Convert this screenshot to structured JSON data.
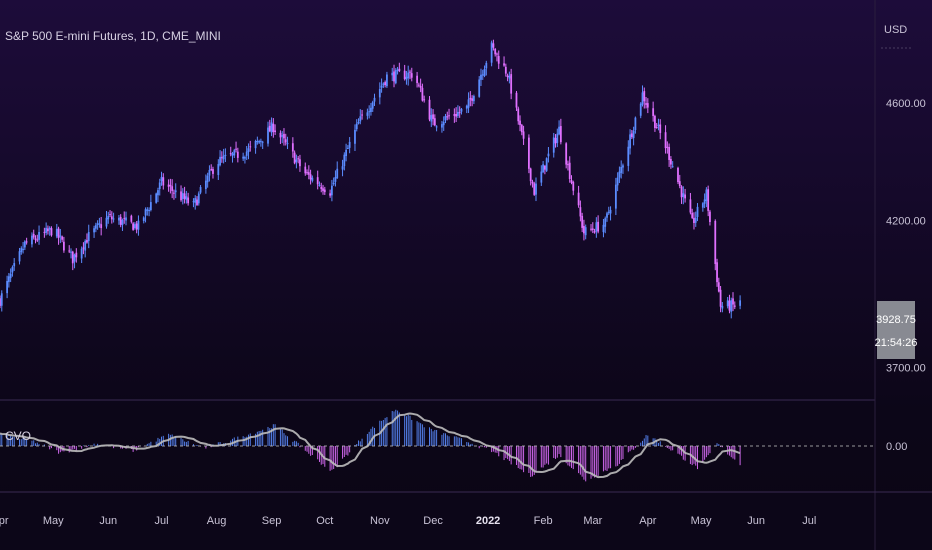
{
  "title": "S&P 500 E-mini Futures, 1D, CME_MINI",
  "currency": "USD",
  "indicator_label": "CVO",
  "price_tag": {
    "price": "3928.75",
    "countdown": "21:54:26"
  },
  "colors": {
    "background": "#0c0618",
    "bull": "#5b8cff",
    "bear": "#e070ff",
    "signal": "#bdbdbd"
  },
  "chart_data": [
    {
      "type": "candlestick",
      "title": "S&P 500 E-mini Futures, 1D, CME_MINI",
      "ylabel": "USD",
      "ylim": [
        3590,
        4950
      ],
      "yticks": [
        {
          "value": 4600,
          "label": "4600.00"
        },
        {
          "value": 4200,
          "label": "4200.00"
        },
        {
          "value": 3700,
          "label": "3700.00"
        }
      ],
      "xlim": [
        "2021-04-01",
        "2022-08-07"
      ],
      "xticks": [
        {
          "date": "2021-04-01",
          "label": "Apr"
        },
        {
          "date": "2021-05-01",
          "label": "May"
        },
        {
          "date": "2021-06-01",
          "label": "Jun"
        },
        {
          "date": "2021-07-01",
          "label": "Jul"
        },
        {
          "date": "2021-08-01",
          "label": "Aug"
        },
        {
          "date": "2021-09-01",
          "label": "Sep"
        },
        {
          "date": "2021-10-01",
          "label": "Oct"
        },
        {
          "date": "2021-11-01",
          "label": "Nov"
        },
        {
          "date": "2021-12-01",
          "label": "Dec"
        },
        {
          "date": "2022-01-01",
          "label": "2022",
          "bold": true
        },
        {
          "date": "2022-02-01",
          "label": "Feb"
        },
        {
          "date": "2022-03-01",
          "label": "Mar"
        },
        {
          "date": "2022-04-01",
          "label": "Apr"
        },
        {
          "date": "2022-05-01",
          "label": "May"
        },
        {
          "date": "2022-06-01",
          "label": "Jun"
        },
        {
          "date": "2022-07-01",
          "label": "Jul"
        }
      ],
      "close_path": [
        {
          "date": "2021-04-01",
          "close": 3930
        },
        {
          "date": "2021-04-15",
          "close": 4120
        },
        {
          "date": "2021-05-01",
          "close": 4170
        },
        {
          "date": "2021-05-12",
          "close": 4070
        },
        {
          "date": "2021-05-20",
          "close": 4140
        },
        {
          "date": "2021-06-01",
          "close": 4210
        },
        {
          "date": "2021-06-18",
          "close": 4180
        },
        {
          "date": "2021-07-01",
          "close": 4330
        },
        {
          "date": "2021-07-19",
          "close": 4250
        },
        {
          "date": "2021-08-01",
          "close": 4400
        },
        {
          "date": "2021-08-20",
          "close": 4440
        },
        {
          "date": "2021-09-02",
          "close": 4520
        },
        {
          "date": "2021-09-20",
          "close": 4360
        },
        {
          "date": "2021-10-04",
          "close": 4300
        },
        {
          "date": "2021-10-20",
          "close": 4530
        },
        {
          "date": "2021-11-05",
          "close": 4690
        },
        {
          "date": "2021-11-20",
          "close": 4700
        },
        {
          "date": "2021-12-01",
          "close": 4530
        },
        {
          "date": "2021-12-20",
          "close": 4580
        },
        {
          "date": "2022-01-03",
          "close": 4790
        },
        {
          "date": "2022-01-12",
          "close": 4700
        },
        {
          "date": "2022-01-27",
          "close": 4300
        },
        {
          "date": "2022-02-10",
          "close": 4510
        },
        {
          "date": "2022-02-24",
          "close": 4160
        },
        {
          "date": "2022-03-08",
          "close": 4190
        },
        {
          "date": "2022-03-29",
          "close": 4630
        },
        {
          "date": "2022-04-12",
          "close": 4440
        },
        {
          "date": "2022-04-26",
          "close": 4190
        },
        {
          "date": "2022-05-04",
          "close": 4290
        },
        {
          "date": "2022-05-12",
          "close": 3910
        },
        {
          "date": "2022-05-20",
          "close": 3910
        },
        {
          "date": "2022-05-23",
          "close": 3928.75
        }
      ],
      "last_price": 3928.75
    },
    {
      "type": "histogram+line",
      "title": "CVO",
      "ylim": [
        -1,
        1
      ],
      "yticks": [
        {
          "value": 0,
          "label": "0.00"
        }
      ],
      "reference_line": 0,
      "hist_path": [
        {
          "date": "2021-04-01",
          "value": 0.25
        },
        {
          "date": "2021-04-20",
          "value": 0.1
        },
        {
          "date": "2021-05-05",
          "value": -0.15
        },
        {
          "date": "2021-05-25",
          "value": 0.05
        },
        {
          "date": "2021-06-15",
          "value": -0.1
        },
        {
          "date": "2021-07-05",
          "value": 0.25
        },
        {
          "date": "2021-07-25",
          "value": -0.05
        },
        {
          "date": "2021-08-15",
          "value": 0.2
        },
        {
          "date": "2021-09-03",
          "value": 0.45
        },
        {
          "date": "2021-09-20",
          "value": -0.1
        },
        {
          "date": "2021-10-05",
          "value": -0.55
        },
        {
          "date": "2021-10-25",
          "value": 0.3
        },
        {
          "date": "2021-11-10",
          "value": 0.8
        },
        {
          "date": "2021-11-30",
          "value": 0.35
        },
        {
          "date": "2021-12-20",
          "value": 0.1
        },
        {
          "date": "2022-01-05",
          "value": -0.15
        },
        {
          "date": "2022-01-25",
          "value": -0.65
        },
        {
          "date": "2022-02-10",
          "value": -0.2
        },
        {
          "date": "2022-02-25",
          "value": -0.75
        },
        {
          "date": "2022-03-15",
          "value": -0.4
        },
        {
          "date": "2022-04-01",
          "value": 0.25
        },
        {
          "date": "2022-04-15",
          "value": -0.1
        },
        {
          "date": "2022-04-30",
          "value": -0.5
        },
        {
          "date": "2022-05-10",
          "value": 0.05
        },
        {
          "date": "2022-05-23",
          "value": -0.4
        }
      ]
    }
  ]
}
